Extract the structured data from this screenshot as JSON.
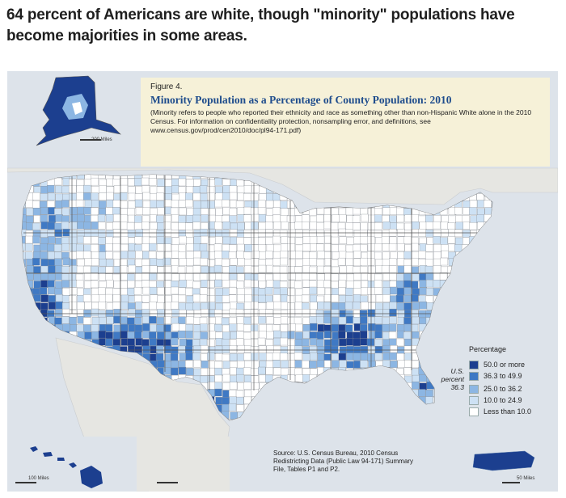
{
  "headline": "64 percent of Americans are white, though \"minority\" populations have become majorities in some areas.",
  "figure": {
    "label": "Figure 4.",
    "title": "Minority Population as a Percentage of County Population: 2010",
    "note": "(Minority refers to people who reported their ethnicity and race as something other than non-Hispanic White alone in the 2010 Census. For information on confidentiality protection, nonsampling error, and definitions, see www.census.gov/prod/cen2010/doc/pl94-171.pdf)"
  },
  "legend": {
    "title": "Percentage",
    "us_percent_label": "U.S. percent 36.3",
    "items": [
      {
        "label": "50.0 or more",
        "color": "#1c3f8f"
      },
      {
        "label": "36.3 to 49.9",
        "color": "#3f79c4"
      },
      {
        "label": "25.0 to 36.2",
        "color": "#8cb6e3"
      },
      {
        "label": "10.0 to 24.9",
        "color": "#cde1f4"
      },
      {
        "label": "Less than 10.0",
        "color": "#ffffff"
      }
    ]
  },
  "source": "Source: U.S. Census Bureau, 2010 Census Redistricting Data (Public Law 94-171) Summary File, Tables P1 and P2.",
  "scales": {
    "alaska": "200 Miles",
    "hawaii": "100 Miles",
    "puerto_rico": "50 Miles"
  },
  "colors": {
    "water": "#dde3ea",
    "neighbor_land": "#e6e6e2"
  }
}
